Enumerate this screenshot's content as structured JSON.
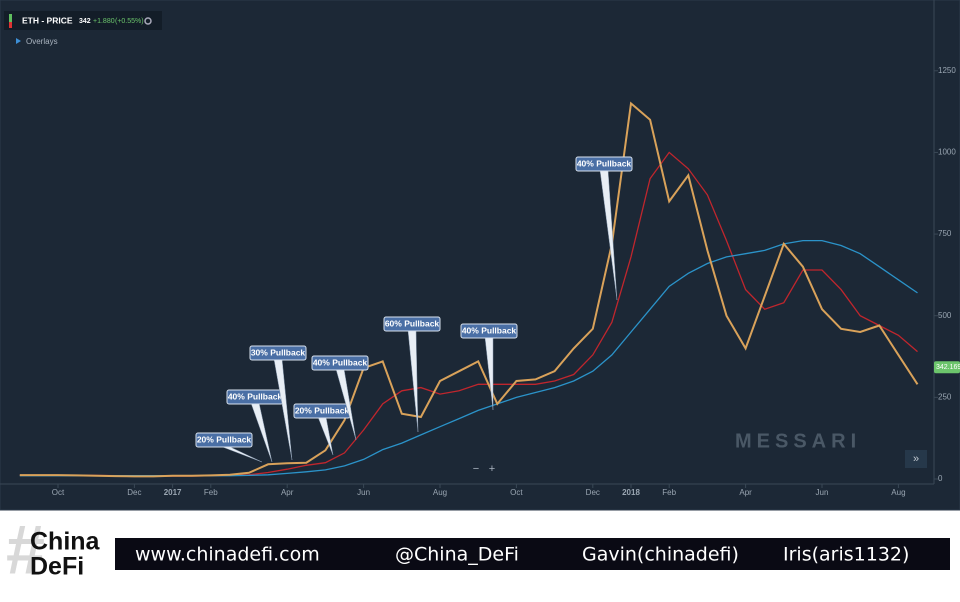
{
  "chart_data": {
    "type": "line",
    "title": "ETH - PRICE",
    "header_price": "342",
    "header_change": "+1.880",
    "header_change_pct": "(+0.55%)",
    "overlays_label": "Overlays",
    "watermark": "MESSARI",
    "categories": [
      null,
      null,
      "Oct",
      null,
      null,
      null,
      "Dec",
      null,
      "2017",
      null,
      "Feb",
      null,
      null,
      null,
      "Apr",
      null,
      null,
      null,
      "Jun",
      null,
      null,
      null,
      "Aug",
      null,
      null,
      null,
      "Oct",
      null,
      null,
      null,
      "Dec",
      null,
      "2018",
      null,
      "Feb",
      null,
      null,
      null,
      "Apr",
      null,
      null,
      null,
      "Jun",
      null,
      null,
      null,
      "Aug",
      null
    ],
    "series": [
      {
        "color": "#d9a25a",
        "values": [
          12,
          12,
          12,
          11,
          10,
          9,
          8,
          8,
          10,
          10,
          11,
          13,
          19,
          45,
          48,
          50,
          88,
          180,
          340,
          360,
          200,
          190,
          300,
          330,
          360,
          230,
          300,
          305,
          330,
          400,
          460,
          720,
          1150,
          1100,
          850,
          930,
          700,
          500,
          400,
          560,
          720,
          650,
          520,
          460,
          450,
          470,
          380,
          290
        ]
      },
      {
        "color": "#c0262d",
        "values": [
          12,
          12,
          12,
          12,
          11,
          10,
          9,
          8,
          9,
          9,
          10,
          11,
          13,
          20,
          30,
          42,
          50,
          80,
          150,
          230,
          270,
          280,
          260,
          270,
          290,
          290,
          290,
          290,
          300,
          320,
          380,
          480,
          680,
          920,
          1000,
          950,
          870,
          730,
          580,
          520,
          540,
          640,
          640,
          580,
          500,
          470,
          440,
          390
        ]
      },
      {
        "color": "#2b93c9",
        "values": [
          10,
          10,
          10,
          10,
          10,
          10,
          10,
          10,
          10,
          10,
          10,
          10,
          11,
          13,
          17,
          22,
          28,
          40,
          60,
          90,
          110,
          135,
          160,
          185,
          210,
          230,
          250,
          265,
          280,
          300,
          330,
          380,
          450,
          520,
          590,
          630,
          660,
          680,
          690,
          700,
          720,
          730,
          730,
          715,
          690,
          650,
          610,
          570
        ]
      }
    ],
    "ylim": [
      0,
      1430
    ],
    "yticks": [
      0,
      250,
      500,
      750,
      1000,
      1250
    ],
    "last_price": 342.169,
    "annotations": [
      "20% Pullback",
      "40% Pullback",
      "30% Pullback",
      "20% Pullback",
      "40% Pullback",
      "60% Pullback",
      "40% Pullback",
      "40% Pullback"
    ]
  },
  "footer": {
    "logo_line1": "China",
    "logo_line2": "DeFi",
    "website": "www.chinadefi.com",
    "twitter": "@China_DeFi",
    "author1": "Gavin(chinadefi)",
    "author2": "Iris(aris1132)"
  }
}
